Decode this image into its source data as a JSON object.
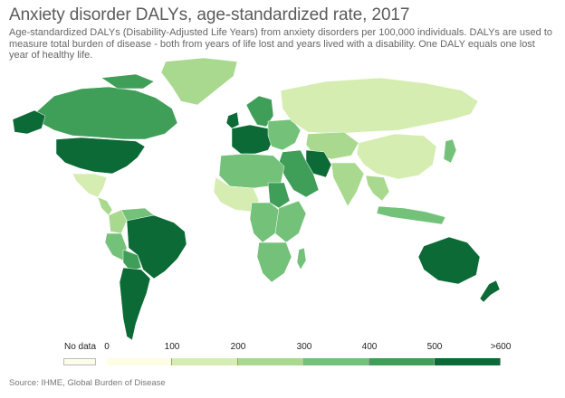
{
  "title": "Anxiety disorder DALYs, age-standardized rate, 2017",
  "subtitle": "Age-standardized DALYs (Disability-Adjusted Life Years) from anxiety disorders per 100,000 individuals. DALYs are used to measure total burden of disease - both from years of life lost and years lived with a disability. One DALY equals one lost year of healthy life.",
  "source": "Source: IHME, Global Burden of Disease",
  "legend": {
    "no_data_label": "No data",
    "ticks": [
      "0",
      "100",
      "200",
      "300",
      "400",
      "500",
      ">600"
    ],
    "no_data_color": "#fdfde8",
    "colors": [
      "#fcfde2",
      "#d6edb2",
      "#a9d98e",
      "#74c27a",
      "#3f9f58",
      "#0b6a36"
    ]
  },
  "regions": [
    {
      "name": "North America",
      "bucket": 5
    },
    {
      "name": "Canada",
      "bucket": 4
    },
    {
      "name": "Greenland",
      "bucket": 2
    },
    {
      "name": "Mexico",
      "bucket": 1
    },
    {
      "name": "Central America",
      "bucket": 2
    },
    {
      "name": "Colombia",
      "bucket": 2
    },
    {
      "name": "Venezuela",
      "bucket": 3
    },
    {
      "name": "Peru",
      "bucket": 3
    },
    {
      "name": "Brazil",
      "bucket": 5
    },
    {
      "name": "Bolivia",
      "bucket": 4
    },
    {
      "name": "Argentina and Chile",
      "bucket": 5
    },
    {
      "name": "Western Europe",
      "bucket": 5
    },
    {
      "name": "Scandinavia",
      "bucket": 4
    },
    {
      "name": "Eastern Europe",
      "bucket": 3
    },
    {
      "name": "Russia",
      "bucket": 1
    },
    {
      "name": "Central Asia",
      "bucket": 2
    },
    {
      "name": "Iran",
      "bucket": 5
    },
    {
      "name": "Middle East",
      "bucket": 4
    },
    {
      "name": "India",
      "bucket": 2
    },
    {
      "name": "China",
      "bucket": 1
    },
    {
      "name": "Southeast Asia",
      "bucket": 2
    },
    {
      "name": "Indonesia",
      "bucket": 3
    },
    {
      "name": "North Africa",
      "bucket": 3
    },
    {
      "name": "West Africa",
      "bucket": 1
    },
    {
      "name": "Central Africa",
      "bucket": 3
    },
    {
      "name": "East Africa",
      "bucket": 3
    },
    {
      "name": "Sudan",
      "bucket": 4
    },
    {
      "name": "Southern Africa",
      "bucket": 3
    },
    {
      "name": "Madagascar",
      "bucket": 3
    },
    {
      "name": "Australia",
      "bucket": 5
    },
    {
      "name": "New Zealand",
      "bucket": 5
    },
    {
      "name": "Japan",
      "bucket": 3
    }
  ]
}
